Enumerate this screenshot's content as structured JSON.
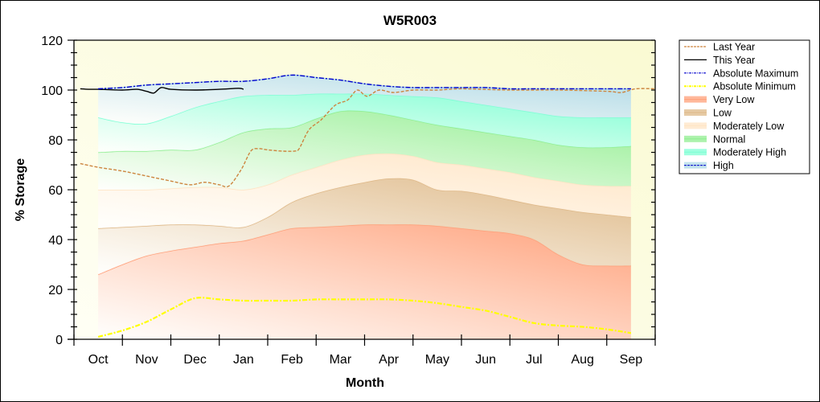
{
  "chart_data": {
    "type": "area",
    "title": "W5R003",
    "xlabel": "Month",
    "ylabel": "% Storage",
    "ylim": [
      0,
      120
    ],
    "yticks": [
      0,
      20,
      40,
      60,
      80,
      100,
      120
    ],
    "y_minor_step": 5,
    "xlim_months": [
      0,
      12
    ],
    "x_tick_labels": [
      "Oct",
      "Nov",
      "Dec",
      "Jan",
      "Feb",
      "Mar",
      "Apr",
      "May",
      "Jun",
      "Jul",
      "Aug",
      "Sep"
    ],
    "grid": false,
    "legend_position": "right",
    "x_note": "x values are in months since Oct 1 (0 = Oct 1, 12 = next Oct 1)",
    "band_x": [
      0.5,
      1.0,
      1.5,
      2.0,
      2.5,
      3.0,
      3.5,
      4.0,
      4.5,
      5.0,
      5.5,
      6.0,
      6.5,
      7.0,
      7.5,
      8.0,
      8.5,
      9.0,
      9.5,
      10.0,
      10.5,
      11.0,
      11.5
    ],
    "bands": [
      {
        "name": "Very Low",
        "color": "#ffa07a",
        "upper": [
          26,
          30,
          33.5,
          35.5,
          37,
          38.5,
          39.5,
          42,
          44.5,
          45,
          45.5,
          46,
          46,
          46,
          45.5,
          44.5,
          43.5,
          42.5,
          40,
          34,
          30,
          29.5,
          29.5
        ]
      },
      {
        "name": "Low",
        "color": "#deb887",
        "upper": [
          44.5,
          45,
          45.5,
          46,
          46,
          45.5,
          45,
          49,
          55,
          58.5,
          61,
          63,
          64.5,
          64,
          60,
          59.5,
          58,
          56,
          54,
          52.5,
          51,
          50,
          49
        ]
      },
      {
        "name": "Moderately Low",
        "color": "#ffe4c4",
        "upper": [
          60,
          60,
          60,
          60.5,
          61,
          61,
          60,
          62,
          66,
          69,
          72,
          74,
          74.5,
          73.5,
          71,
          70,
          68.5,
          67,
          65,
          63.5,
          62,
          61.5,
          61.5
        ]
      },
      {
        "name": "Normal",
        "color": "#90ee90",
        "upper": [
          75,
          75.5,
          75.5,
          76,
          76,
          79,
          83,
          84.5,
          85,
          88.5,
          91.5,
          91.5,
          90,
          88,
          86,
          84.5,
          83,
          81.5,
          80,
          78,
          77,
          77,
          77.5
        ]
      },
      {
        "name": "Moderately High",
        "color": "#7fffd4",
        "upper": [
          89,
          87,
          86.5,
          89.5,
          93,
          95.5,
          97.5,
          98,
          98,
          98.5,
          98.5,
          98.5,
          98,
          97.5,
          97,
          95.5,
          94,
          92.5,
          91,
          89.5,
          89,
          89,
          89
        ]
      },
      {
        "name": "High",
        "color": "#add8e6",
        "upper": [
          100.5,
          101,
          102,
          102.5,
          103,
          103.5,
          103.5,
          104.5,
          106,
          105,
          104,
          102.5,
          101.5,
          101,
          101,
          101,
          101,
          100.5,
          100.5,
          100.5,
          100.5,
          100.5,
          100.5
        ]
      }
    ],
    "series": [
      {
        "name": "Last Year",
        "color": "#cd853f",
        "style": "dashed",
        "x": [
          0.13,
          0.5,
          1.0,
          1.5,
          2.0,
          2.4,
          2.7,
          3.0,
          3.2,
          3.45,
          3.65,
          3.8,
          4.0,
          4.3,
          4.55,
          4.65,
          4.85,
          5.1,
          5.4,
          5.65,
          5.85,
          6.05,
          6.3,
          6.6,
          7.0,
          7.5,
          8.0,
          9.0,
          10.0,
          11.0,
          11.3,
          11.6,
          12.0
        ],
        "y": [
          70.5,
          69,
          67.5,
          65.5,
          63.5,
          62,
          63,
          62,
          61.5,
          68,
          75.5,
          76.5,
          76,
          75.5,
          75.5,
          76.5,
          84,
          88,
          94,
          96,
          100,
          97.5,
          100,
          99,
          100,
          100,
          100.5,
          100,
          100,
          99.5,
          99,
          100.5,
          100.5
        ]
      },
      {
        "name": "This Year",
        "color": "#000000",
        "style": "solid",
        "x": [
          0.13,
          0.3,
          0.5,
          1.0,
          1.3,
          1.5,
          1.65,
          1.8,
          2.0,
          2.5,
          3.0,
          3.4,
          3.5
        ],
        "y": [
          100.5,
          100.3,
          100.3,
          100,
          100.3,
          99.5,
          98.8,
          101,
          100.3,
          100,
          100.3,
          100.7,
          100.3
        ]
      },
      {
        "name": "Absolute Maximum",
        "color": "#0000cd",
        "style": "dash-dot",
        "from_band": "High"
      },
      {
        "name": "Absolute Minimum",
        "color": "#ffff00",
        "style": "dash-dot",
        "x": [
          0.5,
          1.0,
          1.5,
          2.0,
          2.5,
          3.0,
          3.5,
          4.0,
          4.5,
          5.0,
          5.5,
          6.0,
          6.5,
          7.0,
          7.5,
          8.0,
          8.5,
          9.0,
          9.5,
          10.0,
          10.5,
          11.0,
          11.5
        ],
        "y": [
          1,
          3.5,
          7,
          12,
          16.5,
          16,
          15.5,
          15.5,
          15.5,
          16,
          16,
          16,
          16,
          15.5,
          14.5,
          13,
          11.5,
          9,
          6.5,
          5.5,
          5,
          4,
          2.5
        ]
      }
    ],
    "legend": [
      {
        "label": "Last Year",
        "kind": "line",
        "color": "#cd853f",
        "style": "dashed"
      },
      {
        "label": "This Year",
        "kind": "line",
        "color": "#000000",
        "style": "solid"
      },
      {
        "label": "Absolute Maximum",
        "kind": "line",
        "color": "#0000cd",
        "style": "dash-dot"
      },
      {
        "label": "Absolute Minimum",
        "kind": "line",
        "color": "#ffff00",
        "style": "dash-dot"
      },
      {
        "label": "Very Low",
        "kind": "band",
        "color": "#ffa07a"
      },
      {
        "label": "Low",
        "kind": "band",
        "color": "#deb887"
      },
      {
        "label": "Moderately Low",
        "kind": "band",
        "color": "#ffe4c4"
      },
      {
        "label": "Normal",
        "kind": "band",
        "color": "#90ee90"
      },
      {
        "label": "Moderately High",
        "kind": "band",
        "color": "#7fffd4"
      },
      {
        "label": "High",
        "kind": "band",
        "color": "#add8e6",
        "border": "#0000cd"
      }
    ]
  }
}
